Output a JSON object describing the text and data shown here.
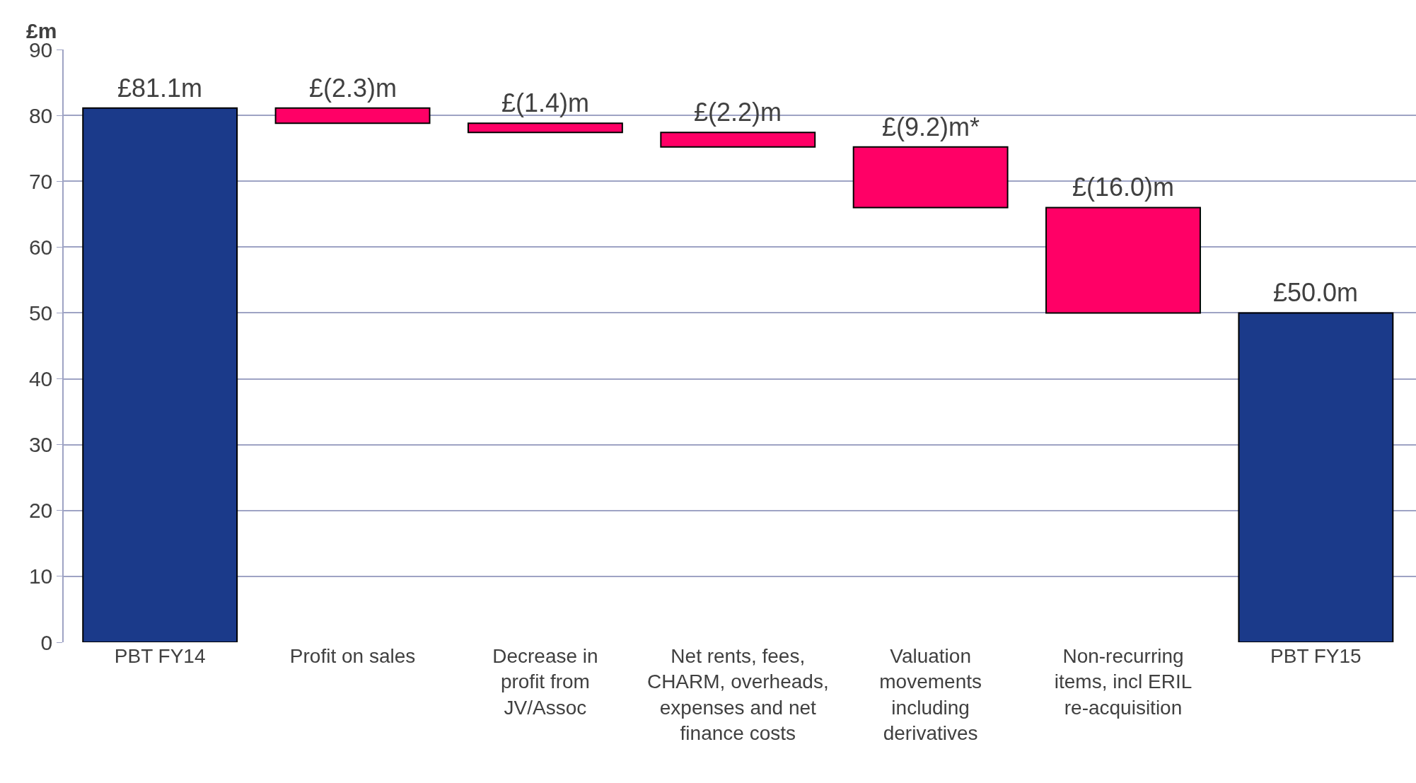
{
  "chart_data": {
    "type": "bar",
    "ylabel": "£m",
    "categories": [
      "PBT FY14",
      "Profit on sales",
      "Decrease in profit from JV/Assoc",
      "Net rents, fees, CHARM, overheads, expenses and net finance costs",
      "Valuation movements including derivatives",
      "Non-recurring items, incl ERIL re-acquisition",
      "PBT FY15"
    ],
    "values": [
      81.1,
      -2.3,
      -1.4,
      -2.2,
      -9.2,
      -16.0,
      50.0
    ],
    "base": [
      0,
      81.1,
      78.8,
      77.4,
      75.2,
      66.0,
      0
    ],
    "colors": [
      "#1b3a8a",
      "#ff0066",
      "#ff0066",
      "#ff0066",
      "#ff0066",
      "#ff0066",
      "#1b3a8a"
    ],
    "value_labels": [
      "£81.1m",
      "£(2.3)m",
      "£(1.4)m",
      "£(2.2)m",
      "£(9.2)m*",
      "£(16.0)m",
      "£50.0m"
    ],
    "ylim": [
      0,
      90
    ],
    "yticks": [
      0,
      10,
      20,
      30,
      40,
      50,
      60,
      70,
      80,
      90
    ],
    "grid": "y"
  }
}
